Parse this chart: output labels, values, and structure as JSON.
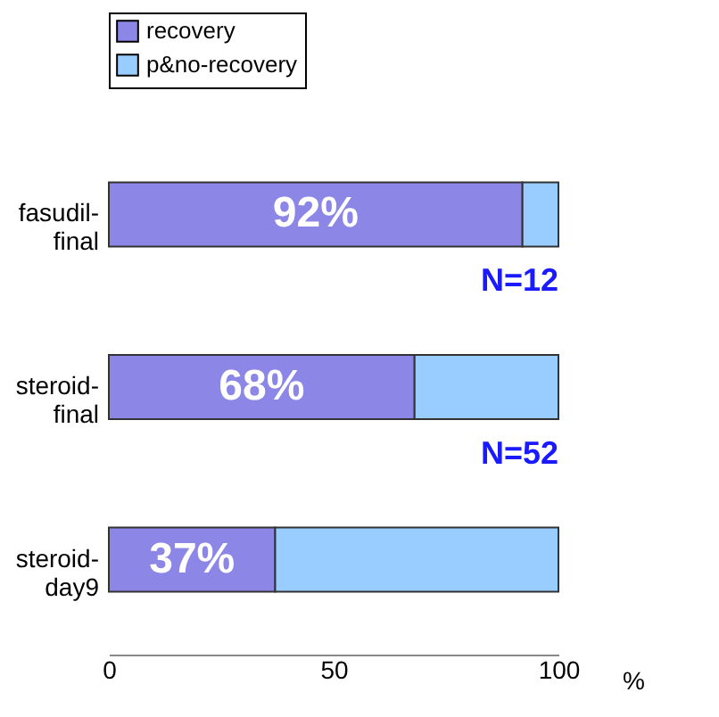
{
  "chart_data": {
    "type": "bar",
    "orientation": "horizontal",
    "stacked": true,
    "categories": [
      "fasudil-final",
      "steroid-final",
      "steroid-day9"
    ],
    "series": [
      {
        "name": "recovery",
        "color": "#8c86e6",
        "values": [
          92,
          68,
          37
        ],
        "value_labels": [
          "92%",
          "68%",
          "37%"
        ]
      },
      {
        "name": "p&no-recovery",
        "color": "#99ccff",
        "values": [
          8,
          32,
          63
        ]
      }
    ],
    "xlim": [
      0,
      100
    ],
    "xticks": [
      0,
      50,
      100
    ],
    "xlabel": "%",
    "legend": "top",
    "grid": false,
    "annotations": [
      "N=12",
      "N=52"
    ]
  }
}
